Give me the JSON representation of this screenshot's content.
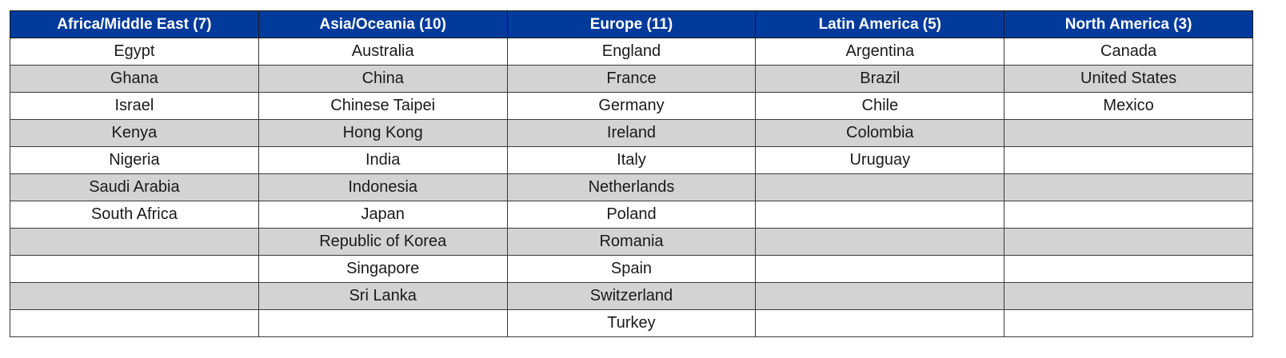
{
  "table": {
    "headers": [
      "Africa/Middle East (7)",
      "Asia/Oceania (10)",
      "Europe (11)",
      "Latin America (5)",
      "North America (3)"
    ],
    "rows": [
      [
        "Egypt",
        "Australia",
        "England",
        "Argentina",
        "Canada"
      ],
      [
        "Ghana",
        "China",
        "France",
        "Brazil",
        "United States"
      ],
      [
        "Israel",
        "Chinese Taipei",
        "Germany",
        "Chile",
        "Mexico"
      ],
      [
        "Kenya",
        "Hong Kong",
        "Ireland",
        "Colombia",
        ""
      ],
      [
        "Nigeria",
        "India",
        "Italy",
        "Uruguay",
        ""
      ],
      [
        "Saudi Arabia",
        "Indonesia",
        "Netherlands",
        "",
        ""
      ],
      [
        "South Africa",
        "Japan",
        "Poland",
        "",
        ""
      ],
      [
        "",
        "Republic of Korea",
        "Romania",
        "",
        ""
      ],
      [
        "",
        "Singapore",
        "Spain",
        "",
        ""
      ],
      [
        "",
        "Sri Lanka",
        "Switzerland",
        "",
        ""
      ],
      [
        "",
        "",
        "Turkey",
        "",
        ""
      ]
    ]
  },
  "colors": {
    "header_bg": "#003a9b",
    "header_text": "#ffffff",
    "stripe_bg": "#d3d3d3",
    "row_bg": "#ffffff"
  }
}
